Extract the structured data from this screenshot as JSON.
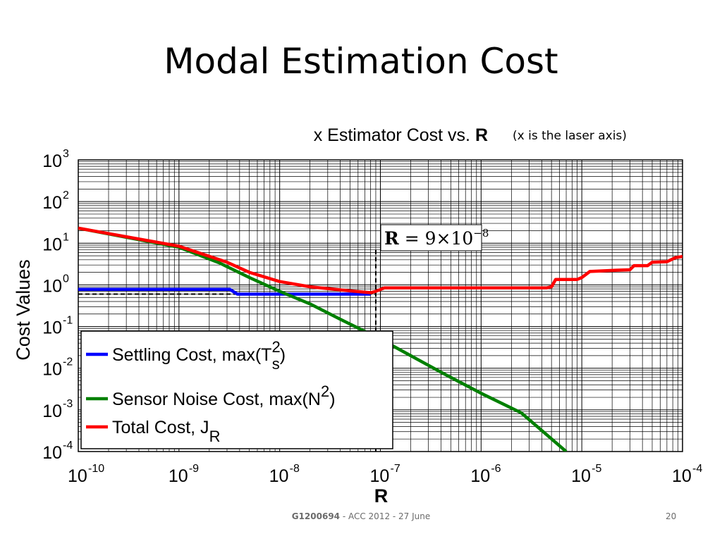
{
  "slide": {
    "title": "Modal Estimation Cost",
    "note": "(x is the laser axis)",
    "footer_code": "G1200694",
    "footer_text": " - ACC 2012 - 27 June",
    "page_number": "20"
  },
  "chart_data": {
    "type": "line",
    "title_prefix": "x Estimator Cost vs. ",
    "title_bold": "R",
    "xlabel": "R",
    "ylabel": "Cost Values",
    "xscale": "log",
    "yscale": "log",
    "xlim": [
      1e-10,
      0.0001
    ],
    "ylim": [
      0.0001,
      1000
    ],
    "grid": true,
    "x_ticks": [
      {
        "base": "10",
        "exp": "-10"
      },
      {
        "base": "10",
        "exp": "-9"
      },
      {
        "base": "10",
        "exp": "-8"
      },
      {
        "base": "10",
        "exp": "-7"
      },
      {
        "base": "10",
        "exp": "-6"
      },
      {
        "base": "10",
        "exp": "-5"
      },
      {
        "base": "10",
        "exp": "-4"
      }
    ],
    "y_ticks": [
      {
        "base": "10",
        "exp": "3"
      },
      {
        "base": "10",
        "exp": "2"
      },
      {
        "base": "10",
        "exp": "1"
      },
      {
        "base": "10",
        "exp": "0"
      },
      {
        "base": "10",
        "exp": "-1"
      },
      {
        "base": "10",
        "exp": "-2"
      },
      {
        "base": "10",
        "exp": "-3"
      },
      {
        "base": "10",
        "exp": "-4"
      }
    ],
    "legend_position": "bottom-left",
    "series": [
      {
        "name": "Settling Cost, max(T",
        "name_sup": "2",
        "name_sub": "s",
        "name_suffix": ")",
        "color": "#0000ff",
        "points": [
          [
            1e-10,
            0.78
          ],
          [
            3.2e-09,
            0.78
          ],
          [
            3.8e-09,
            0.6
          ],
          [
            8e-08,
            0.6
          ]
        ]
      },
      {
        "name": "Sensor Noise Cost, max(N",
        "name_sup": "2",
        "name_sub": "",
        "name_suffix": ")",
        "color": "#008000",
        "points": [
          [
            1e-10,
            23
          ],
          [
            1e-09,
            8
          ],
          [
            2.5e-09,
            3.4
          ],
          [
            5e-09,
            1.5
          ],
          [
            1e-08,
            0.7
          ],
          [
            2e-08,
            0.35
          ],
          [
            4e-08,
            0.15
          ],
          [
            1e-07,
            0.05
          ],
          [
            2e-07,
            0.02
          ],
          [
            4e-07,
            0.008
          ],
          [
            1e-06,
            0.0025
          ],
          [
            2.5e-06,
            0.00085
          ],
          [
            7e-06,
            0.0001
          ]
        ]
      },
      {
        "name": "Total Cost, J",
        "name_sup": "",
        "name_sub": "R",
        "name_suffix": "",
        "color": "#ff0000",
        "points": [
          [
            1e-10,
            23
          ],
          [
            1e-09,
            8.5
          ],
          [
            3e-09,
            3.5
          ],
          [
            5e-09,
            2
          ],
          [
            1e-08,
            1.2
          ],
          [
            2e-08,
            0.9
          ],
          [
            5e-08,
            0.72
          ],
          [
            8e-08,
            0.65
          ],
          [
            9e-08,
            0.7
          ],
          [
            1.1e-07,
            0.85
          ],
          [
            4.5e-06,
            0.85
          ],
          [
            5e-06,
            0.9
          ],
          [
            5.5e-06,
            1.35
          ],
          [
            9e-06,
            1.35
          ],
          [
            1e-05,
            1.5
          ],
          [
            1.2e-05,
            2.1
          ],
          [
            2.2e-05,
            2.25
          ],
          [
            3e-05,
            2.3
          ],
          [
            3.3e-05,
            2.9
          ],
          [
            4.5e-05,
            2.9
          ],
          [
            5e-05,
            3.5
          ],
          [
            7e-05,
            3.6
          ],
          [
            8.5e-05,
            4.5
          ],
          [
            0.0001,
            4.8
          ]
        ]
      }
    ],
    "reference_line": {
      "x": 9e-08,
      "y": 0.6,
      "label_bold": "R",
      "label_text": " = 9×10",
      "label_exp": "−8"
    }
  }
}
